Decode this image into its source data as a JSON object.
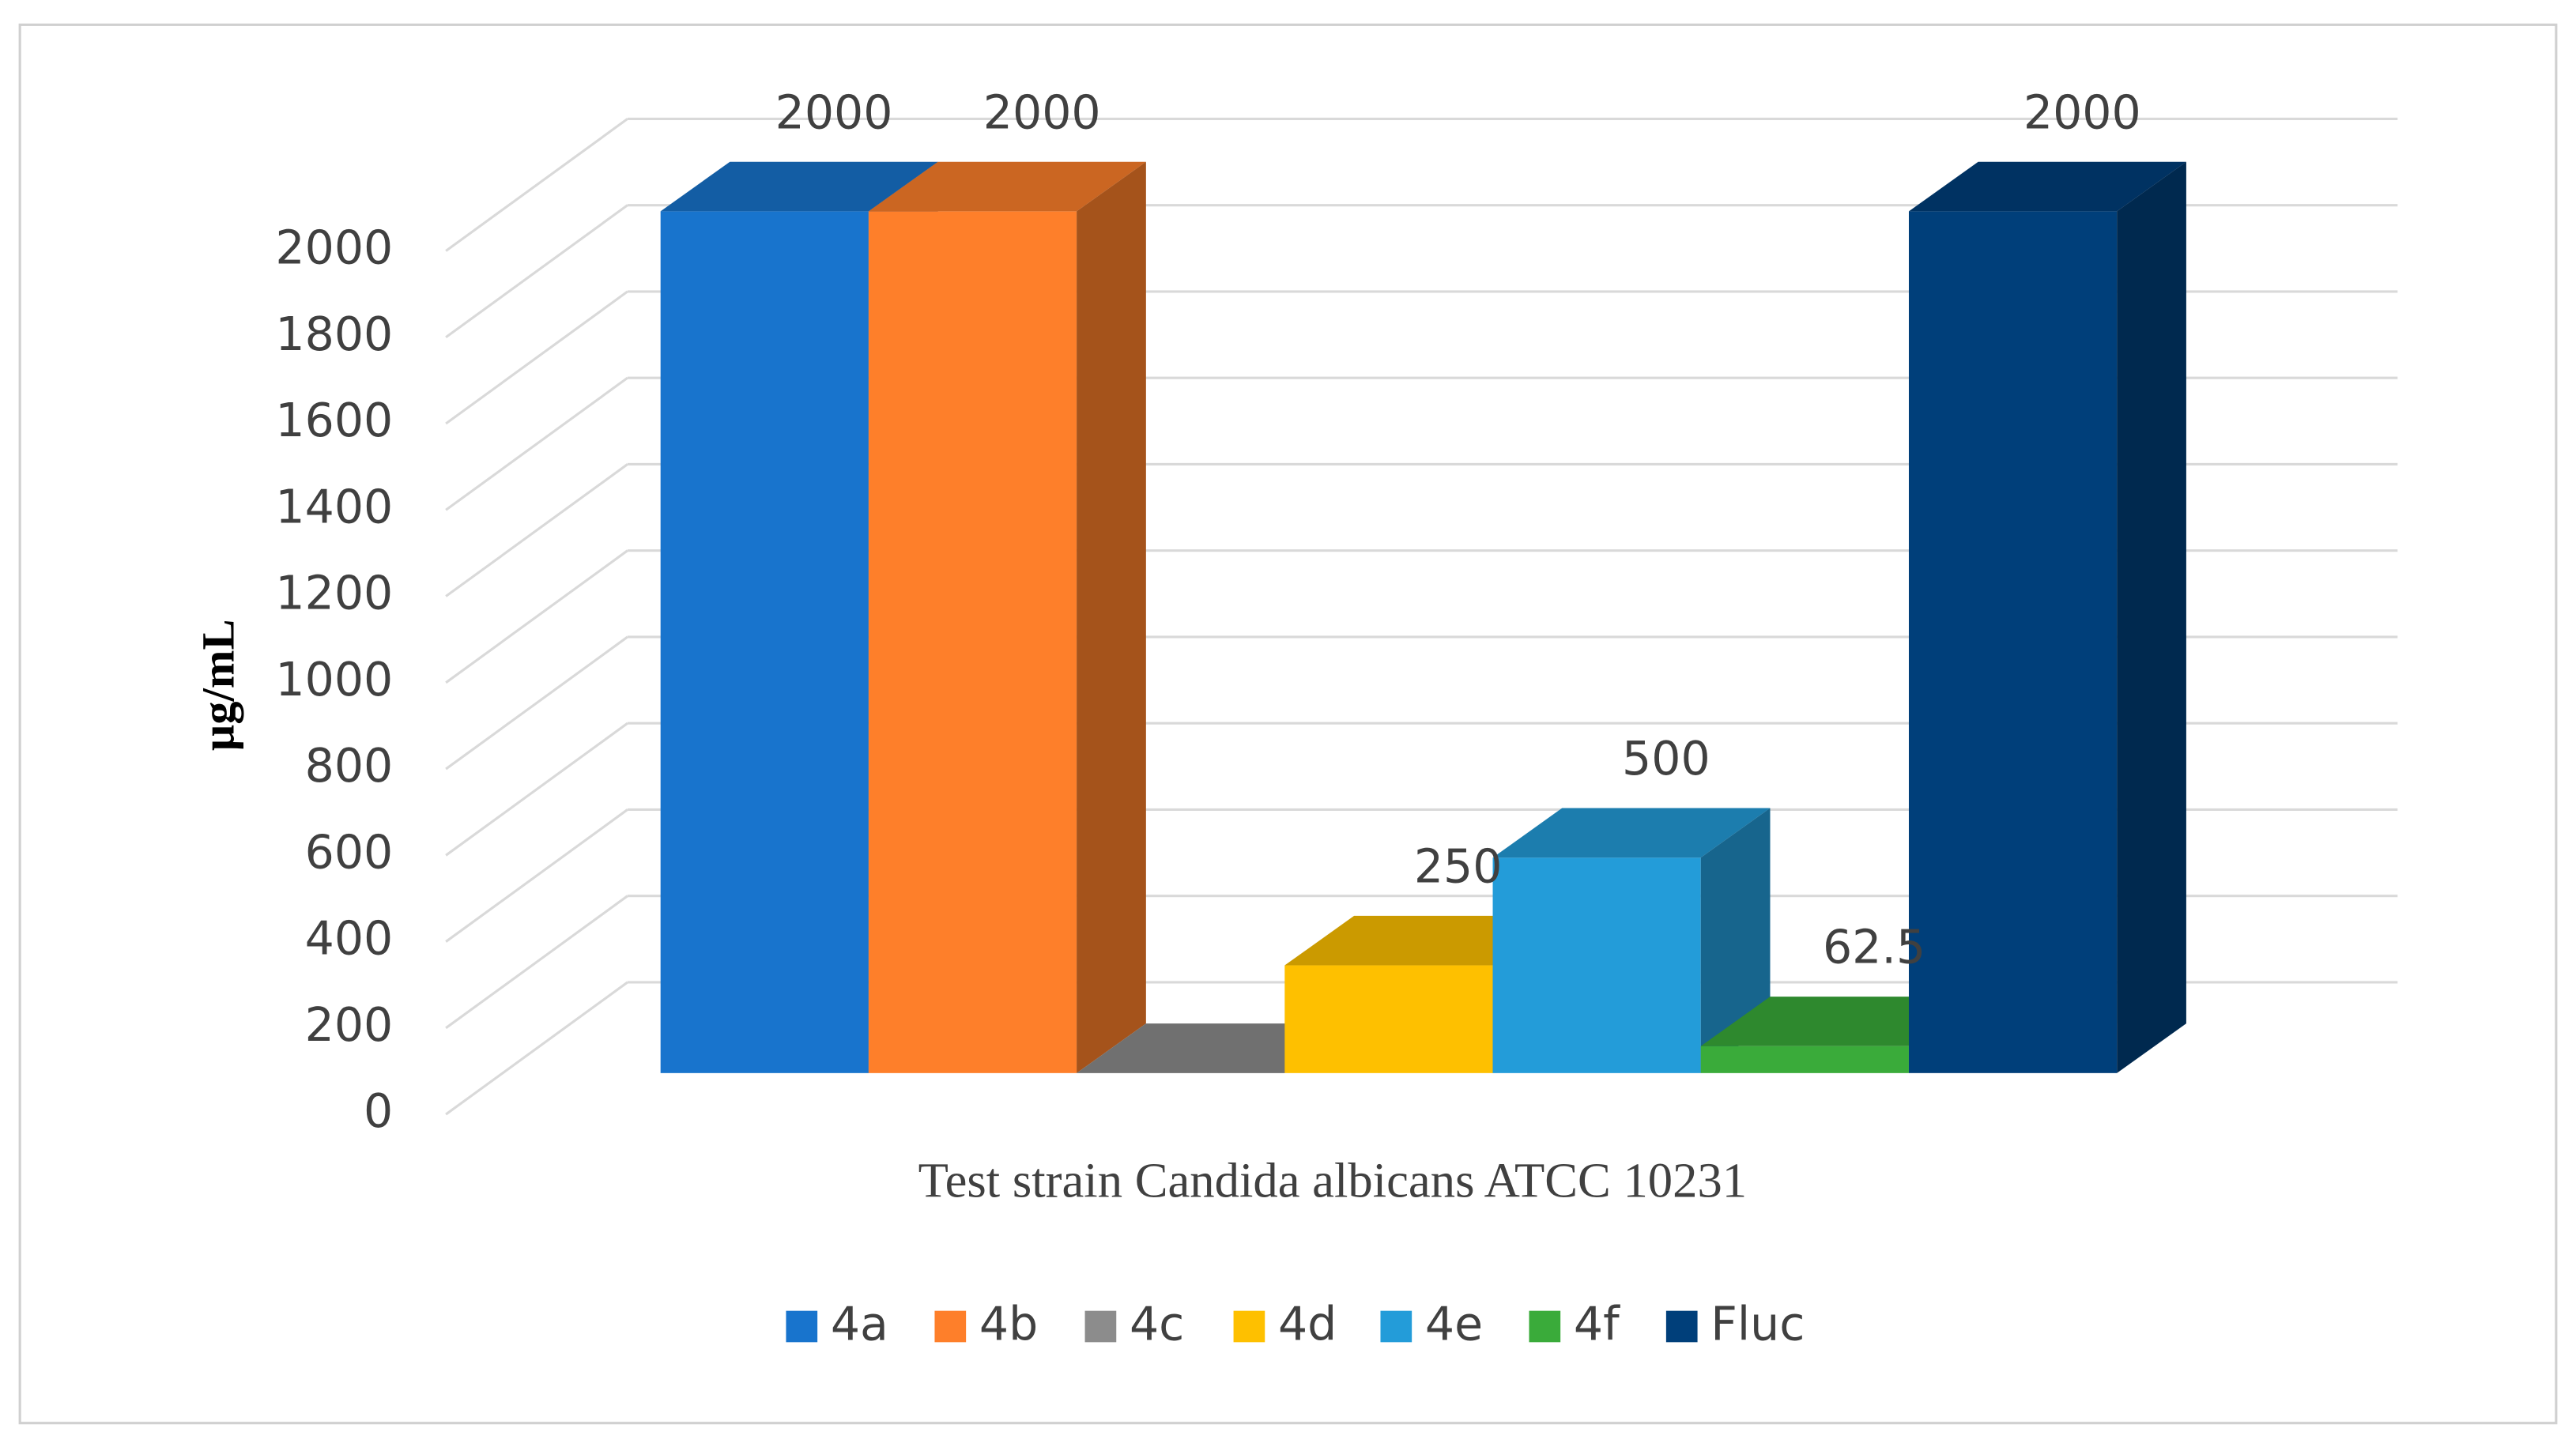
{
  "chart_data": {
    "type": "bar3d",
    "x_label": "Test strain Candida albicans ATCC 10231",
    "y_label": "µg/mL",
    "ylim": [
      0,
      2000
    ],
    "yticks": [
      0,
      200,
      400,
      600,
      800,
      1000,
      1200,
      1400,
      1600,
      1800,
      2000
    ],
    "grid": true,
    "legend": "bottom",
    "series": [
      {
        "name": "4a",
        "color": "#1874cd",
        "values": [
          2000
        ]
      },
      {
        "name": "4b",
        "color": "#fe7f2a",
        "values": [
          2000
        ]
      },
      {
        "name": "4c",
        "color": "#8c8c8c",
        "values": [
          0
        ],
        "value_labels": [
          null
        ]
      },
      {
        "name": "4d",
        "color": "#fec000",
        "values": [
          250
        ]
      },
      {
        "name": "4e",
        "color": "#239cd9",
        "values": [
          500
        ]
      },
      {
        "name": "4f",
        "color": "#3aab3a",
        "values": [
          62.5
        ]
      },
      {
        "name": "Fluc",
        "color": "#003f7a",
        "values": [
          2000
        ]
      }
    ]
  }
}
